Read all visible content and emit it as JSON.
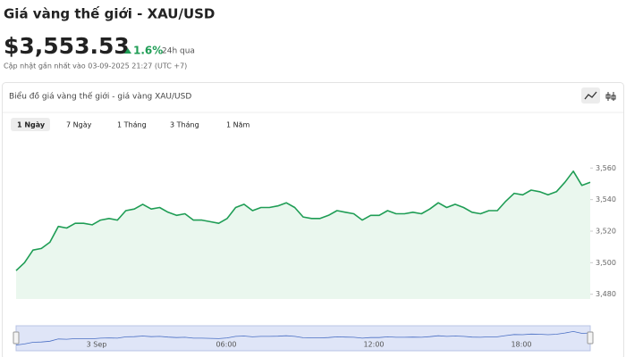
{
  "header": {
    "title": "Giá vàng thế giới - XAU/USD",
    "price": "$3,553.53",
    "change": "1.6%",
    "change_period": "24h qua",
    "updated": "Cập nhật gần nhất vào 03-09-2025 21:27 (UTC +7)"
  },
  "chart_data": {
    "type": "line",
    "title": "Biểu đồ giá vàng thế giới - giá vàng XAU/USD",
    "ranges": [
      "1 Ngày",
      "7 Ngày",
      "1 Tháng",
      "3 Tháng",
      "1 Năm"
    ],
    "selected_range": "1 Ngày",
    "values": [
      3495,
      3500,
      3508,
      3509,
      3513,
      3523,
      3522,
      3525,
      3525,
      3524,
      3527,
      3528,
      3527,
      3533,
      3534,
      3537,
      3534,
      3535,
      3532,
      3530,
      3531,
      3527,
      3527,
      3526,
      3525,
      3528,
      3535,
      3537,
      3533,
      3535,
      3535,
      3536,
      3538,
      3535,
      3529,
      3528,
      3528,
      3530,
      3533,
      3532,
      3531,
      3527,
      3530,
      3530,
      3533,
      3531,
      3531,
      3532,
      3531,
      3534,
      3538,
      3535,
      3537,
      3535,
      3532,
      3531,
      3533,
      3533,
      3539,
      3544,
      3543,
      3546,
      3545,
      3543,
      3545,
      3551,
      3558,
      3549,
      3551
    ],
    "color": "#1f9d55",
    "ylim": [
      3477,
      3576
    ],
    "yticks": [
      {
        "value": 3480,
        "label": "3,480"
      },
      {
        "value": 3500,
        "label": "3,500"
      },
      {
        "value": 3520,
        "label": "3,520"
      },
      {
        "value": 3540,
        "label": "3,540"
      },
      {
        "value": 3560,
        "label": "3,560"
      }
    ],
    "navigator_ticks": [
      "3 Sep",
      "06:00",
      "12:00",
      "18:00"
    ]
  }
}
